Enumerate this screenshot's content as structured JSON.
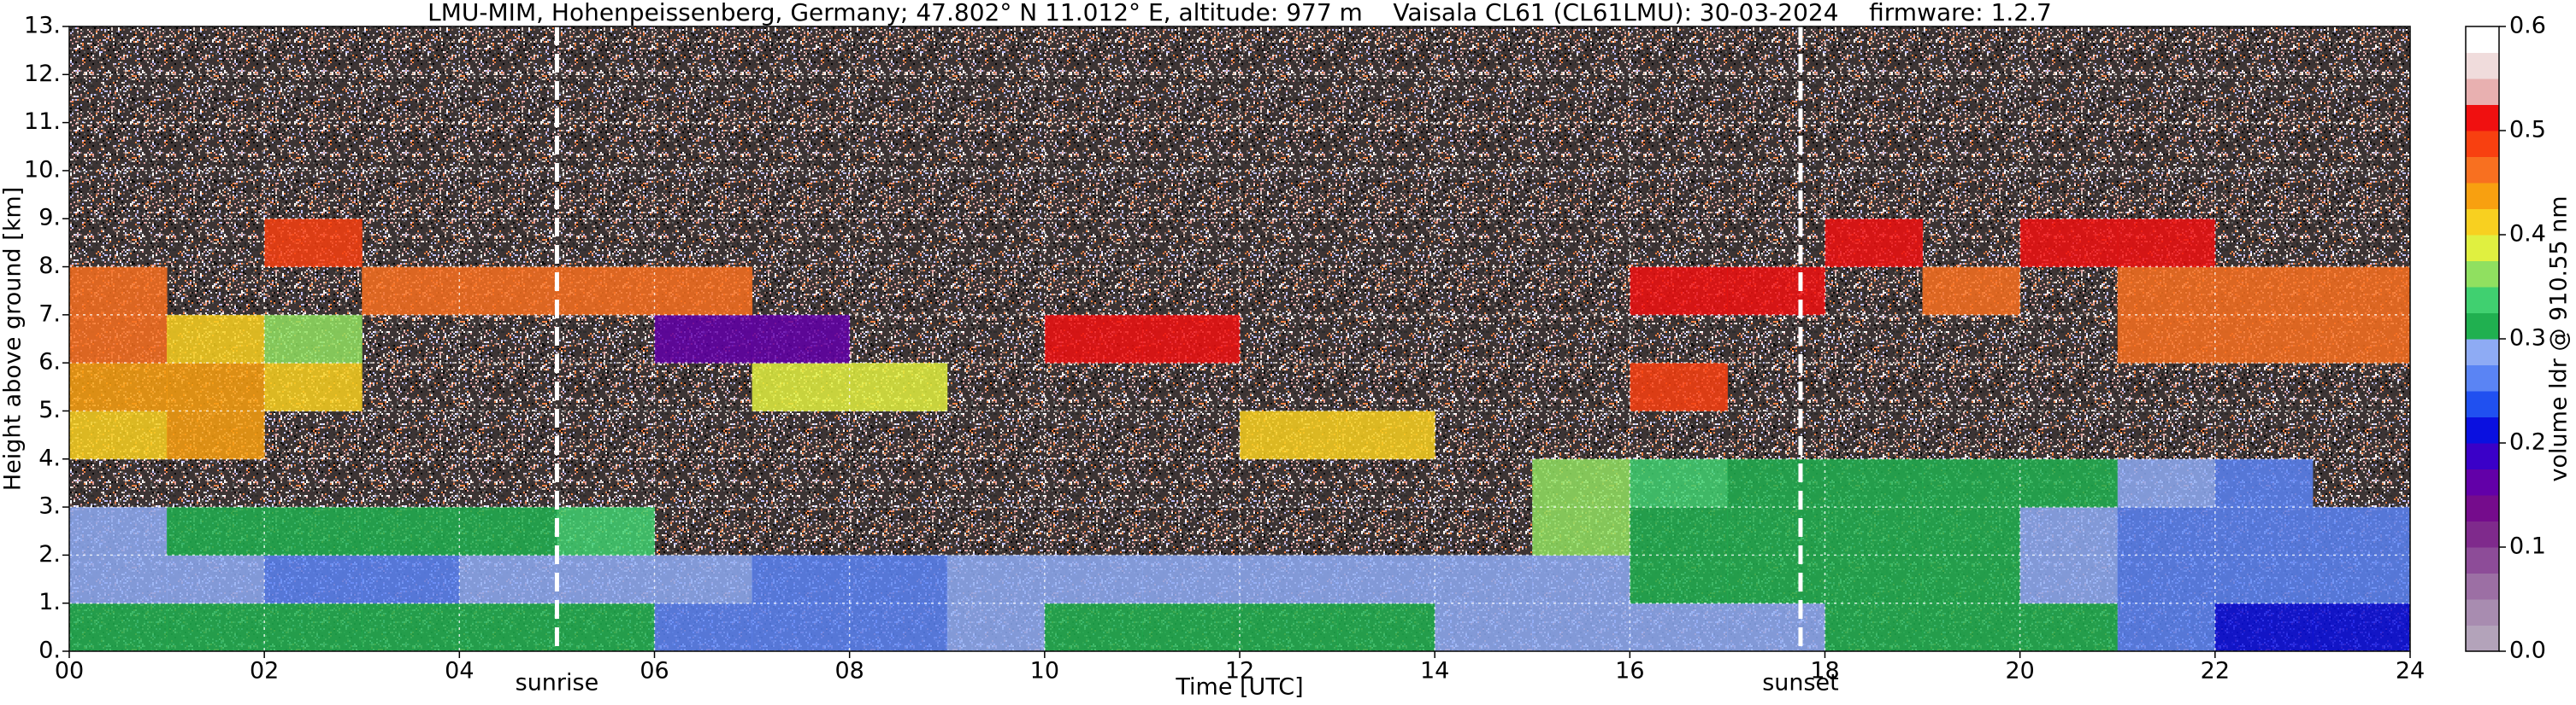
{
  "chart_data": {
    "type": "heatmap",
    "title": "LMU-MIM, Hohenpeissenberg, Germany; 47.802° N 11.012° E, altitude: 977 m    Vaisala CL61 (CL61LMU): 30-03-2024    firmware: 1.2.7",
    "xlabel": "Time [UTC]",
    "ylabel": "Height above ground [km]",
    "zlabel": "volume ldr @ 910.55 nm",
    "xlim": [
      0,
      24
    ],
    "ylim": [
      0,
      13
    ],
    "zlim": [
      0,
      0.6
    ],
    "xticks": [
      {
        "value": 0,
        "label": "00"
      },
      {
        "value": 2,
        "label": "02"
      },
      {
        "value": 4,
        "label": "04"
      },
      {
        "value": 6,
        "label": "06"
      },
      {
        "value": 8,
        "label": "08"
      },
      {
        "value": 10,
        "label": "10"
      },
      {
        "value": 12,
        "label": "12"
      },
      {
        "value": 14,
        "label": "14"
      },
      {
        "value": 16,
        "label": "16"
      },
      {
        "value": 18,
        "label": "18"
      },
      {
        "value": 20,
        "label": "20"
      },
      {
        "value": 22,
        "label": "22"
      },
      {
        "value": 24,
        "label": "24"
      }
    ],
    "yticks": [
      {
        "value": 0,
        "label": "0."
      },
      {
        "value": 1,
        "label": "1."
      },
      {
        "value": 2,
        "label": "2."
      },
      {
        "value": 3,
        "label": "3."
      },
      {
        "value": 4,
        "label": "4."
      },
      {
        "value": 5,
        "label": "5."
      },
      {
        "value": 6,
        "label": "6."
      },
      {
        "value": 7,
        "label": "7."
      },
      {
        "value": 8,
        "label": "8."
      },
      {
        "value": 9,
        "label": "9."
      },
      {
        "value": 10,
        "label": "10."
      },
      {
        "value": 11,
        "label": "11."
      },
      {
        "value": 12,
        "label": "12."
      },
      {
        "value": 13,
        "label": "13."
      }
    ],
    "zticks": [
      {
        "value": 0,
        "label": "0.0"
      },
      0.1,
      0.2,
      0.3,
      0.4,
      0.5,
      0.6
    ],
    "grid": true,
    "colormap": [
      "#b3a3ba",
      "#a88cb0",
      "#9c6fa4",
      "#8d4c98",
      "#7f2a8c",
      "#750c8c",
      "#6200a8",
      "#3a00c8",
      "#0a10e0",
      "#2050f0",
      "#5a84f4",
      "#8eabf4",
      "#20b050",
      "#40d070",
      "#90e060",
      "#e0f040",
      "#f8d020",
      "#f8a010",
      "#f87020",
      "#f84010",
      "#f01010",
      "#e8b0b0",
      "#f0dcdc",
      "#ffffff"
    ],
    "xbins": [
      0,
      1,
      2,
      3,
      4,
      5,
      6,
      7,
      8,
      9,
      10,
      11,
      12,
      13,
      14,
      15,
      16,
      17,
      18,
      19,
      20,
      21,
      22,
      23,
      24
    ],
    "ybins": [
      0,
      1,
      2,
      3,
      4,
      5,
      6,
      7,
      8,
      9,
      10,
      11,
      12,
      13
    ],
    "z": [
      [
        0.3,
        0.3,
        0.3,
        0.3,
        0.3,
        0.31,
        0.27,
        0.26,
        0.26,
        0.28,
        0.3,
        0.3,
        0.3,
        0.3,
        0.29,
        0.28,
        0.28,
        0.29,
        0.3,
        0.3,
        0.3,
        0.27,
        0.2,
        0.2
      ],
      [
        0.28,
        0.28,
        0.27,
        0.27,
        0.28,
        0.28,
        0.28,
        0.27,
        0.27,
        0.28,
        0.28,
        0.28,
        0.28,
        0.28,
        0.29,
        0.29,
        0.3,
        0.31,
        0.31,
        0.3,
        0.29,
        0.27,
        0.25,
        0.25
      ],
      [
        0.29,
        0.3,
        0.3,
        0.3,
        0.32,
        0.34,
        null,
        null,
        null,
        null,
        null,
        null,
        null,
        null,
        null,
        0.35,
        0.32,
        0.31,
        0.3,
        0.3,
        0.29,
        0.27,
        0.26,
        0.26
      ],
      [
        null,
        null,
        null,
        null,
        null,
        null,
        null,
        null,
        null,
        null,
        null,
        null,
        null,
        null,
        null,
        0.36,
        0.33,
        0.32,
        0.32,
        0.31,
        0.3,
        0.28,
        0.27,
        null
      ],
      [
        0.42,
        0.43,
        null,
        null,
        null,
        null,
        null,
        null,
        null,
        null,
        null,
        null,
        0.41,
        0.42,
        null,
        null,
        null,
        null,
        null,
        null,
        null,
        null,
        null,
        null
      ],
      [
        0.44,
        0.44,
        0.4,
        null,
        null,
        null,
        null,
        0.38,
        0.38,
        null,
        null,
        null,
        null,
        null,
        null,
        null,
        0.48,
        null,
        null,
        null,
        null,
        null,
        null,
        null
      ],
      [
        0.45,
        0.42,
        0.36,
        null,
        null,
        null,
        0.15,
        0.16,
        null,
        null,
        0.5,
        0.5,
        null,
        null,
        null,
        null,
        null,
        null,
        null,
        null,
        null,
        0.46,
        0.45,
        0.46
      ],
      [
        0.46,
        null,
        null,
        0.46,
        0.47,
        0.45,
        0.46,
        null,
        null,
        null,
        null,
        null,
        null,
        null,
        null,
        null,
        0.52,
        0.5,
        null,
        0.46,
        null,
        0.47,
        0.47,
        0.46
      ],
      [
        null,
        null,
        0.48,
        null,
        null,
        null,
        null,
        null,
        null,
        null,
        null,
        null,
        null,
        null,
        null,
        null,
        null,
        null,
        0.52,
        null,
        0.52,
        0.52,
        null,
        null
      ],
      [
        null,
        null,
        null,
        null,
        null,
        null,
        null,
        null,
        null,
        null,
        null,
        null,
        null,
        null,
        null,
        null,
        null,
        null,
        null,
        null,
        null,
        null,
        null,
        null
      ],
      [
        null,
        null,
        null,
        null,
        null,
        null,
        null,
        null,
        null,
        null,
        null,
        null,
        null,
        null,
        null,
        null,
        null,
        null,
        null,
        null,
        null,
        null,
        null,
        null
      ],
      [
        null,
        null,
        null,
        null,
        null,
        null,
        null,
        null,
        null,
        null,
        null,
        null,
        null,
        null,
        null,
        null,
        null,
        null,
        null,
        null,
        null,
        null,
        null,
        null
      ],
      [
        null,
        null,
        null,
        null,
        null,
        null,
        null,
        null,
        null,
        null,
        null,
        null,
        null,
        null,
        null,
        null,
        null,
        null,
        null,
        null,
        null,
        null,
        null,
        null
      ]
    ],
    "annotations": [
      {
        "text": "sunrise",
        "x": 5.0
      },
      {
        "text": "sunset",
        "x": 17.75
      }
    ]
  }
}
